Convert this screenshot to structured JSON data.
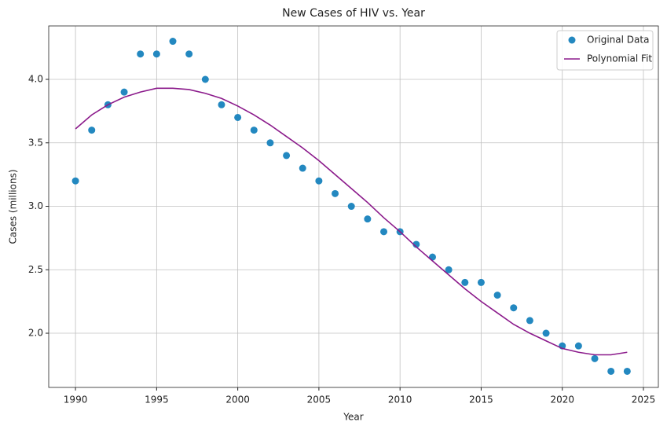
{
  "chart_data": {
    "type": "scatter",
    "title": "New Cases of HIV vs. Year",
    "xlabel": "Year",
    "ylabel": "Cases (millions)",
    "x": [
      1990,
      1991,
      1992,
      1993,
      1994,
      1995,
      1996,
      1997,
      1998,
      1999,
      2000,
      2001,
      2002,
      2003,
      2004,
      2005,
      2006,
      2007,
      2008,
      2009,
      2010,
      2011,
      2012,
      2013,
      2014,
      2015,
      2016,
      2017,
      2018,
      2019,
      2020,
      2021,
      2022,
      2023,
      2024
    ],
    "series": [
      {
        "name": "Original Data",
        "type": "scatter",
        "color": "#2388c0",
        "values": [
          3.2,
          3.6,
          3.8,
          3.9,
          4.2,
          4.2,
          4.3,
          4.2,
          4.0,
          3.8,
          3.7,
          3.6,
          3.5,
          3.4,
          3.3,
          3.2,
          3.1,
          3.0,
          2.9,
          2.8,
          2.8,
          2.7,
          2.6,
          2.5,
          2.4,
          2.4,
          2.3,
          2.2,
          2.1,
          2.0,
          1.9,
          1.9,
          1.8,
          1.7,
          1.7
        ]
      },
      {
        "name": "Polynomial Fit",
        "type": "line",
        "color": "#8b1a8b",
        "values": [
          3.61,
          3.72,
          3.8,
          3.86,
          3.9,
          3.93,
          3.93,
          3.92,
          3.89,
          3.85,
          3.79,
          3.72,
          3.64,
          3.55,
          3.46,
          3.36,
          3.25,
          3.14,
          3.03,
          2.91,
          2.8,
          2.68,
          2.57,
          2.46,
          2.35,
          2.25,
          2.16,
          2.07,
          2.0,
          1.94,
          1.88,
          1.85,
          1.83,
          1.83,
          1.85
        ]
      }
    ],
    "xlim": [
      1988.35,
      2025.92
    ],
    "ylim": [
      1.573,
      4.421
    ],
    "xticks": [
      1990,
      1995,
      2000,
      2005,
      2010,
      2015,
      2020,
      2025
    ],
    "yticks": [
      {
        "value": 2,
        "label": "2.0"
      },
      2.5,
      {
        "value": 3,
        "label": "3.0"
      },
      3.5,
      {
        "value": 4,
        "label": "4.0"
      }
    ],
    "grid": true,
    "legend": "upper right"
  }
}
